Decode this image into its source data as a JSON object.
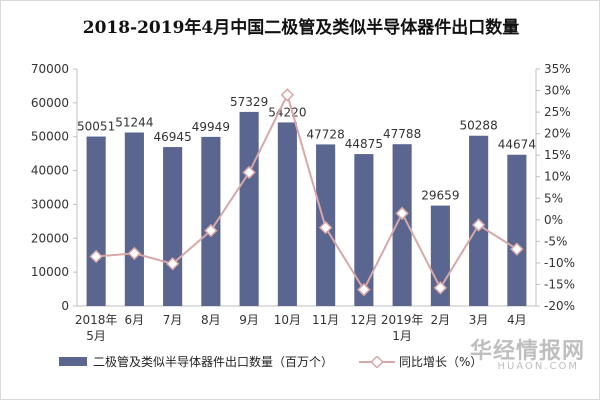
{
  "chart_data": {
    "type": "bar",
    "title": "2018-2019年4月中国二极管及类似半导体器件出口数量",
    "categories": [
      [
        "2018年",
        "5月"
      ],
      [
        "6月"
      ],
      [
        "7月"
      ],
      [
        "8月"
      ],
      [
        "9月"
      ],
      [
        "10月"
      ],
      [
        "11月"
      ],
      [
        "12月"
      ],
      [
        "2019年",
        "1月"
      ],
      [
        "2月"
      ],
      [
        "3月"
      ],
      [
        "4月"
      ]
    ],
    "series": [
      {
        "name": "二极管及类似半导体器件出口数量（百万个）",
        "type": "bar",
        "axis": "left",
        "values": [
          50051,
          51244,
          46945,
          49949,
          57329,
          54220,
          47728,
          44875,
          47788,
          29659,
          50288,
          44674
        ]
      },
      {
        "name": "同比增长（%）",
        "type": "line",
        "axis": "right",
        "values": [
          -8.5,
          -7.8,
          -10.2,
          -2.5,
          11.0,
          29.0,
          -1.8,
          -16.2,
          1.5,
          -15.8,
          -1.2,
          -6.8
        ]
      }
    ],
    "y_left": {
      "min": 0,
      "max": 70000,
      "ticks": [
        0,
        10000,
        20000,
        30000,
        40000,
        50000,
        60000,
        70000
      ]
    },
    "y_right": {
      "min": -20,
      "max": 35,
      "ticks": [
        "-20%",
        "-15%",
        "-10%",
        "-5%",
        "0%",
        "5%",
        "10%",
        "15%",
        "20%",
        "25%",
        "30%",
        "35%"
      ]
    },
    "legend_position": "bottom",
    "grid": false
  },
  "colors": {
    "bar": "#5a6690",
    "line": "#d8a7a7",
    "marker_fill": "#ffffff",
    "axis": "#bfbfbf",
    "text": "#333333"
  },
  "watermark": {
    "cn": "华经情报网",
    "en": "HUAON.COM"
  }
}
